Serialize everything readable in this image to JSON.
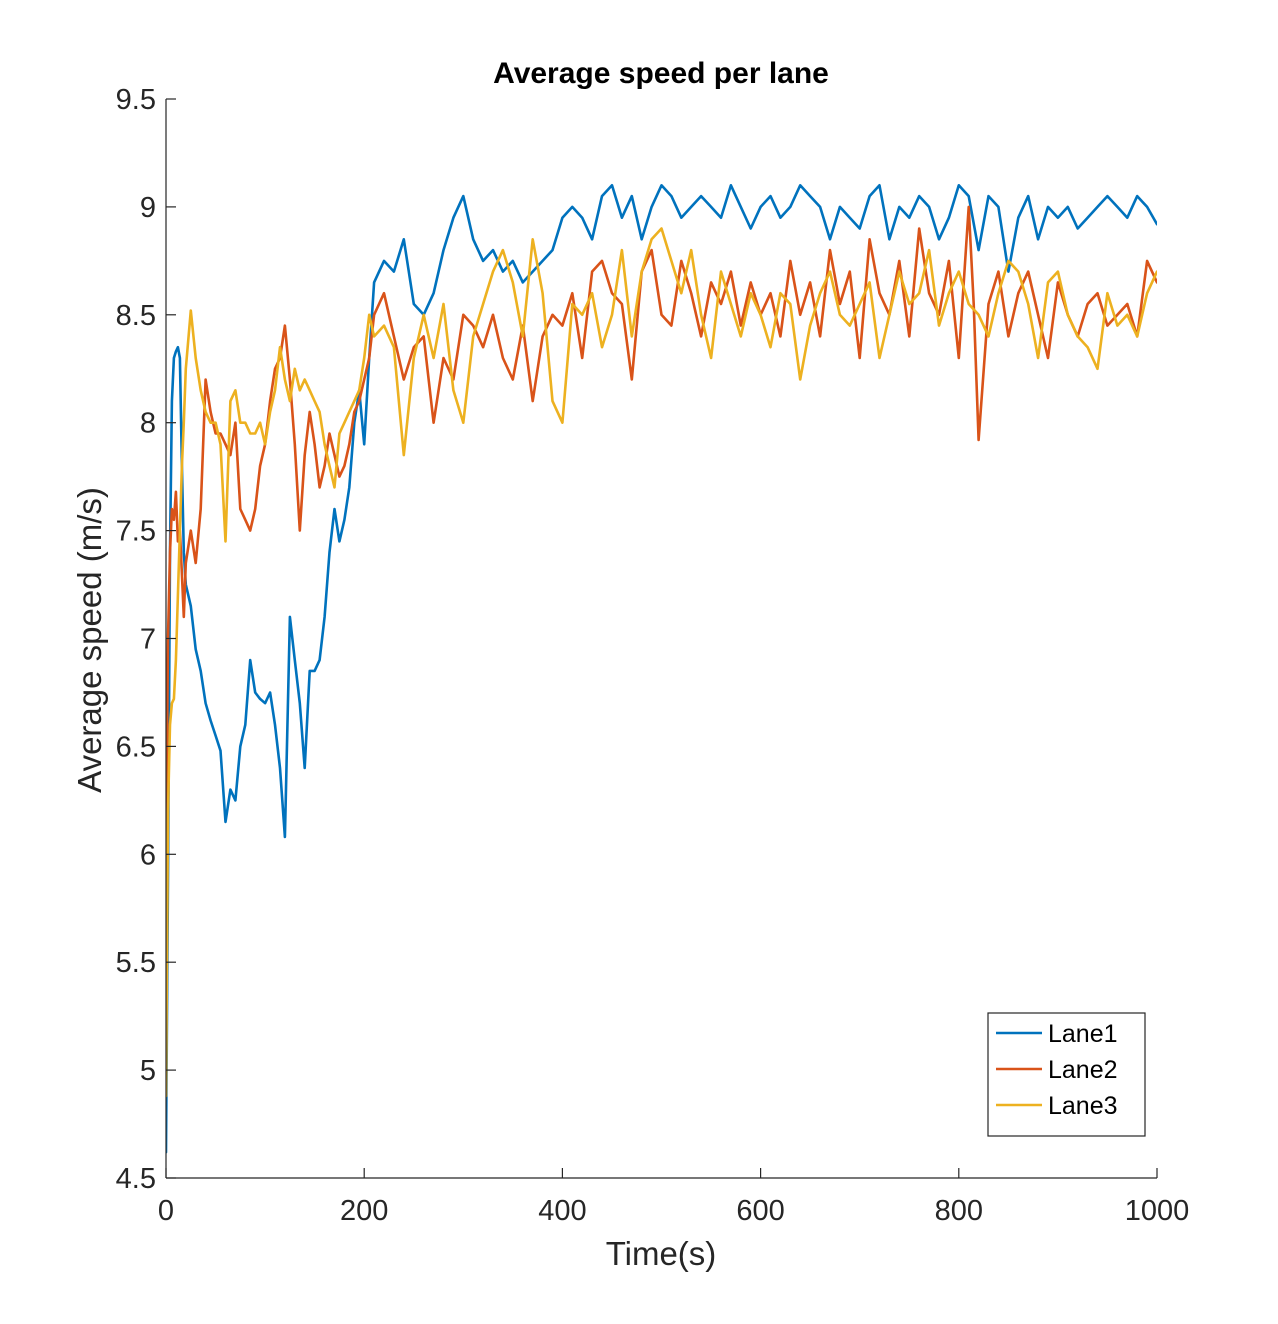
{
  "chart_data": {
    "type": "line",
    "title": "Average speed per lane",
    "xlabel": "Time(s)",
    "ylabel": "Average speed (m/s)",
    "xlim": [
      0,
      1000
    ],
    "ylim": [
      4.5,
      9.5
    ],
    "xticks": [
      0,
      200,
      400,
      600,
      800,
      1000
    ],
    "xtick_labels": [
      "0",
      "200",
      "400",
      "600",
      "800",
      "1000"
    ],
    "yticks": [
      4.5,
      5,
      5.5,
      6,
      6.5,
      7,
      7.5,
      8,
      8.5,
      9,
      9.5
    ],
    "ytick_labels": [
      "4.5",
      "5",
      "5.5",
      "6",
      "6.5",
      "7",
      "7.5",
      "8",
      "8.5",
      "9",
      "9.5"
    ],
    "grid": false,
    "legend_position": "bottom-right",
    "series": [
      {
        "name": "Lane1",
        "color": "#0072BD",
        "x": [
          0,
          2,
          4,
          6,
          8,
          10,
          12,
          14,
          16,
          18,
          20,
          25,
          30,
          35,
          40,
          45,
          50,
          55,
          60,
          65,
          70,
          75,
          80,
          85,
          90,
          95,
          100,
          105,
          110,
          115,
          120,
          125,
          130,
          135,
          140,
          145,
          150,
          155,
          160,
          165,
          170,
          175,
          180,
          185,
          190,
          195,
          200,
          205,
          210,
          220,
          230,
          240,
          250,
          260,
          270,
          280,
          290,
          300,
          310,
          320,
          330,
          340,
          350,
          360,
          370,
          380,
          390,
          400,
          410,
          420,
          430,
          440,
          450,
          460,
          470,
          480,
          490,
          500,
          510,
          520,
          530,
          540,
          550,
          560,
          570,
          580,
          590,
          600,
          610,
          620,
          630,
          640,
          650,
          660,
          670,
          680,
          690,
          700,
          710,
          720,
          730,
          740,
          750,
          760,
          770,
          780,
          790,
          800,
          810,
          820,
          830,
          840,
          850,
          860,
          870,
          880,
          890,
          900,
          910,
          920,
          930,
          940,
          950,
          960,
          970,
          980,
          990,
          1000
        ],
        "y": [
          4.62,
          5.9,
          7.4,
          8.1,
          8.3,
          8.33,
          8.35,
          8.3,
          7.8,
          7.4,
          7.25,
          7.15,
          6.95,
          6.85,
          6.7,
          6.62,
          6.55,
          6.48,
          6.15,
          6.3,
          6.25,
          6.5,
          6.6,
          6.9,
          6.75,
          6.72,
          6.7,
          6.75,
          6.6,
          6.4,
          6.08,
          7.1,
          6.9,
          6.7,
          6.4,
          6.85,
          6.85,
          6.9,
          7.1,
          7.4,
          7.6,
          7.45,
          7.55,
          7.7,
          8.0,
          8.15,
          7.9,
          8.3,
          8.65,
          8.75,
          8.7,
          8.85,
          8.55,
          8.5,
          8.6,
          8.8,
          8.95,
          9.05,
          8.85,
          8.75,
          8.8,
          8.7,
          8.75,
          8.65,
          8.7,
          8.75,
          8.8,
          8.95,
          9.0,
          8.95,
          8.85,
          9.05,
          9.1,
          8.95,
          9.05,
          8.85,
          9.0,
          9.1,
          9.05,
          8.95,
          9.0,
          9.05,
          9.0,
          8.95,
          9.1,
          9.0,
          8.9,
          9.0,
          9.05,
          8.95,
          9.0,
          9.1,
          9.05,
          9.0,
          8.85,
          9.0,
          8.95,
          8.9,
          9.05,
          9.1,
          8.85,
          9.0,
          8.95,
          9.05,
          9.0,
          8.85,
          8.95,
          9.1,
          9.05,
          8.8,
          9.05,
          9.0,
          8.7,
          8.95,
          9.05,
          8.85,
          9.0,
          8.95,
          9.0,
          8.9,
          8.95,
          9.0,
          9.05,
          9.0,
          8.95,
          9.05,
          9.0,
          8.92
        ]
      },
      {
        "name": "Lane2",
        "color": "#D95319",
        "x": [
          0,
          2,
          4,
          6,
          8,
          10,
          12,
          14,
          16,
          18,
          20,
          25,
          30,
          35,
          40,
          45,
          50,
          55,
          60,
          65,
          70,
          75,
          80,
          85,
          90,
          95,
          100,
          105,
          110,
          115,
          120,
          125,
          130,
          135,
          140,
          145,
          150,
          155,
          160,
          165,
          170,
          175,
          180,
          185,
          190,
          195,
          200,
          205,
          210,
          220,
          230,
          240,
          250,
          260,
          270,
          280,
          290,
          300,
          310,
          320,
          330,
          340,
          350,
          360,
          370,
          380,
          390,
          400,
          410,
          420,
          430,
          440,
          450,
          460,
          470,
          480,
          490,
          500,
          510,
          520,
          530,
          540,
          550,
          560,
          570,
          580,
          590,
          600,
          610,
          620,
          630,
          640,
          650,
          660,
          670,
          680,
          690,
          700,
          710,
          720,
          730,
          740,
          750,
          760,
          770,
          780,
          790,
          800,
          810,
          815,
          820,
          830,
          840,
          850,
          860,
          870,
          880,
          890,
          900,
          910,
          920,
          930,
          940,
          950,
          960,
          970,
          980,
          990,
          1000
        ],
        "y": [
          6.0,
          7.0,
          7.4,
          7.6,
          7.55,
          7.68,
          7.45,
          7.5,
          7.3,
          7.1,
          7.35,
          7.5,
          7.35,
          7.6,
          8.2,
          8.05,
          7.95,
          7.95,
          7.9,
          7.85,
          8.0,
          7.6,
          7.55,
          7.5,
          7.6,
          7.8,
          7.9,
          8.1,
          8.25,
          8.3,
          8.45,
          8.2,
          7.9,
          7.5,
          7.85,
          8.05,
          7.9,
          7.7,
          7.8,
          7.95,
          7.85,
          7.75,
          7.8,
          7.9,
          8.05,
          8.1,
          8.2,
          8.3,
          8.5,
          8.6,
          8.4,
          8.2,
          8.35,
          8.4,
          8.0,
          8.3,
          8.2,
          8.5,
          8.45,
          8.35,
          8.5,
          8.3,
          8.2,
          8.45,
          8.1,
          8.4,
          8.5,
          8.45,
          8.6,
          8.3,
          8.7,
          8.75,
          8.6,
          8.55,
          8.2,
          8.7,
          8.8,
          8.5,
          8.45,
          8.75,
          8.6,
          8.4,
          8.65,
          8.55,
          8.7,
          8.45,
          8.65,
          8.5,
          8.6,
          8.4,
          8.75,
          8.5,
          8.65,
          8.4,
          8.8,
          8.55,
          8.7,
          8.3,
          8.85,
          8.6,
          8.5,
          8.75,
          8.4,
          8.9,
          8.6,
          8.5,
          8.75,
          8.3,
          9.0,
          8.55,
          7.92,
          8.55,
          8.7,
          8.4,
          8.6,
          8.7,
          8.5,
          8.3,
          8.65,
          8.5,
          8.4,
          8.55,
          8.6,
          8.45,
          8.5,
          8.55,
          8.4,
          8.75,
          8.65
        ]
      },
      {
        "name": "Lane3",
        "color": "#EDB120",
        "x": [
          0,
          2,
          4,
          6,
          8,
          10,
          12,
          14,
          16,
          18,
          20,
          25,
          30,
          35,
          40,
          45,
          50,
          55,
          60,
          65,
          70,
          75,
          80,
          85,
          90,
          95,
          100,
          105,
          110,
          115,
          120,
          125,
          130,
          135,
          140,
          145,
          150,
          155,
          160,
          165,
          170,
          175,
          180,
          185,
          190,
          195,
          200,
          205,
          210,
          220,
          230,
          240,
          250,
          260,
          270,
          280,
          290,
          300,
          310,
          320,
          330,
          340,
          350,
          360,
          370,
          380,
          390,
          400,
          410,
          420,
          430,
          440,
          450,
          460,
          470,
          480,
          490,
          500,
          510,
          520,
          530,
          540,
          550,
          560,
          570,
          580,
          590,
          600,
          610,
          620,
          630,
          640,
          650,
          660,
          670,
          680,
          690,
          700,
          710,
          720,
          730,
          740,
          750,
          760,
          770,
          780,
          790,
          800,
          810,
          820,
          830,
          840,
          850,
          860,
          870,
          880,
          890,
          900,
          910,
          920,
          930,
          940,
          950,
          960,
          970,
          980,
          990,
          1000
        ],
        "y": [
          4.88,
          6.2,
          6.6,
          6.7,
          6.72,
          6.9,
          7.2,
          7.5,
          7.8,
          8.0,
          8.25,
          8.52,
          8.3,
          8.15,
          8.05,
          8.0,
          8.0,
          7.9,
          7.45,
          8.1,
          8.15,
          8.0,
          8.0,
          7.95,
          7.95,
          8.0,
          7.9,
          8.05,
          8.15,
          8.35,
          8.2,
          8.1,
          8.25,
          8.15,
          8.2,
          8.15,
          8.1,
          8.05,
          7.9,
          7.8,
          7.7,
          7.95,
          8.0,
          8.05,
          8.1,
          8.15,
          8.3,
          8.5,
          8.4,
          8.45,
          8.35,
          7.85,
          8.3,
          8.5,
          8.3,
          8.55,
          8.15,
          8.0,
          8.4,
          8.55,
          8.7,
          8.8,
          8.65,
          8.4,
          8.85,
          8.6,
          8.1,
          8.0,
          8.55,
          8.5,
          8.6,
          8.35,
          8.5,
          8.8,
          8.4,
          8.7,
          8.85,
          8.9,
          8.75,
          8.6,
          8.8,
          8.5,
          8.3,
          8.7,
          8.55,
          8.4,
          8.6,
          8.5,
          8.35,
          8.6,
          8.55,
          8.2,
          8.45,
          8.6,
          8.7,
          8.5,
          8.45,
          8.55,
          8.65,
          8.3,
          8.5,
          8.7,
          8.55,
          8.6,
          8.8,
          8.45,
          8.6,
          8.7,
          8.55,
          8.5,
          8.4,
          8.6,
          8.75,
          8.7,
          8.55,
          8.3,
          8.65,
          8.7,
          8.5,
          8.4,
          8.35,
          8.25,
          8.6,
          8.45,
          8.5,
          8.4,
          8.6,
          8.7
        ]
      }
    ]
  }
}
